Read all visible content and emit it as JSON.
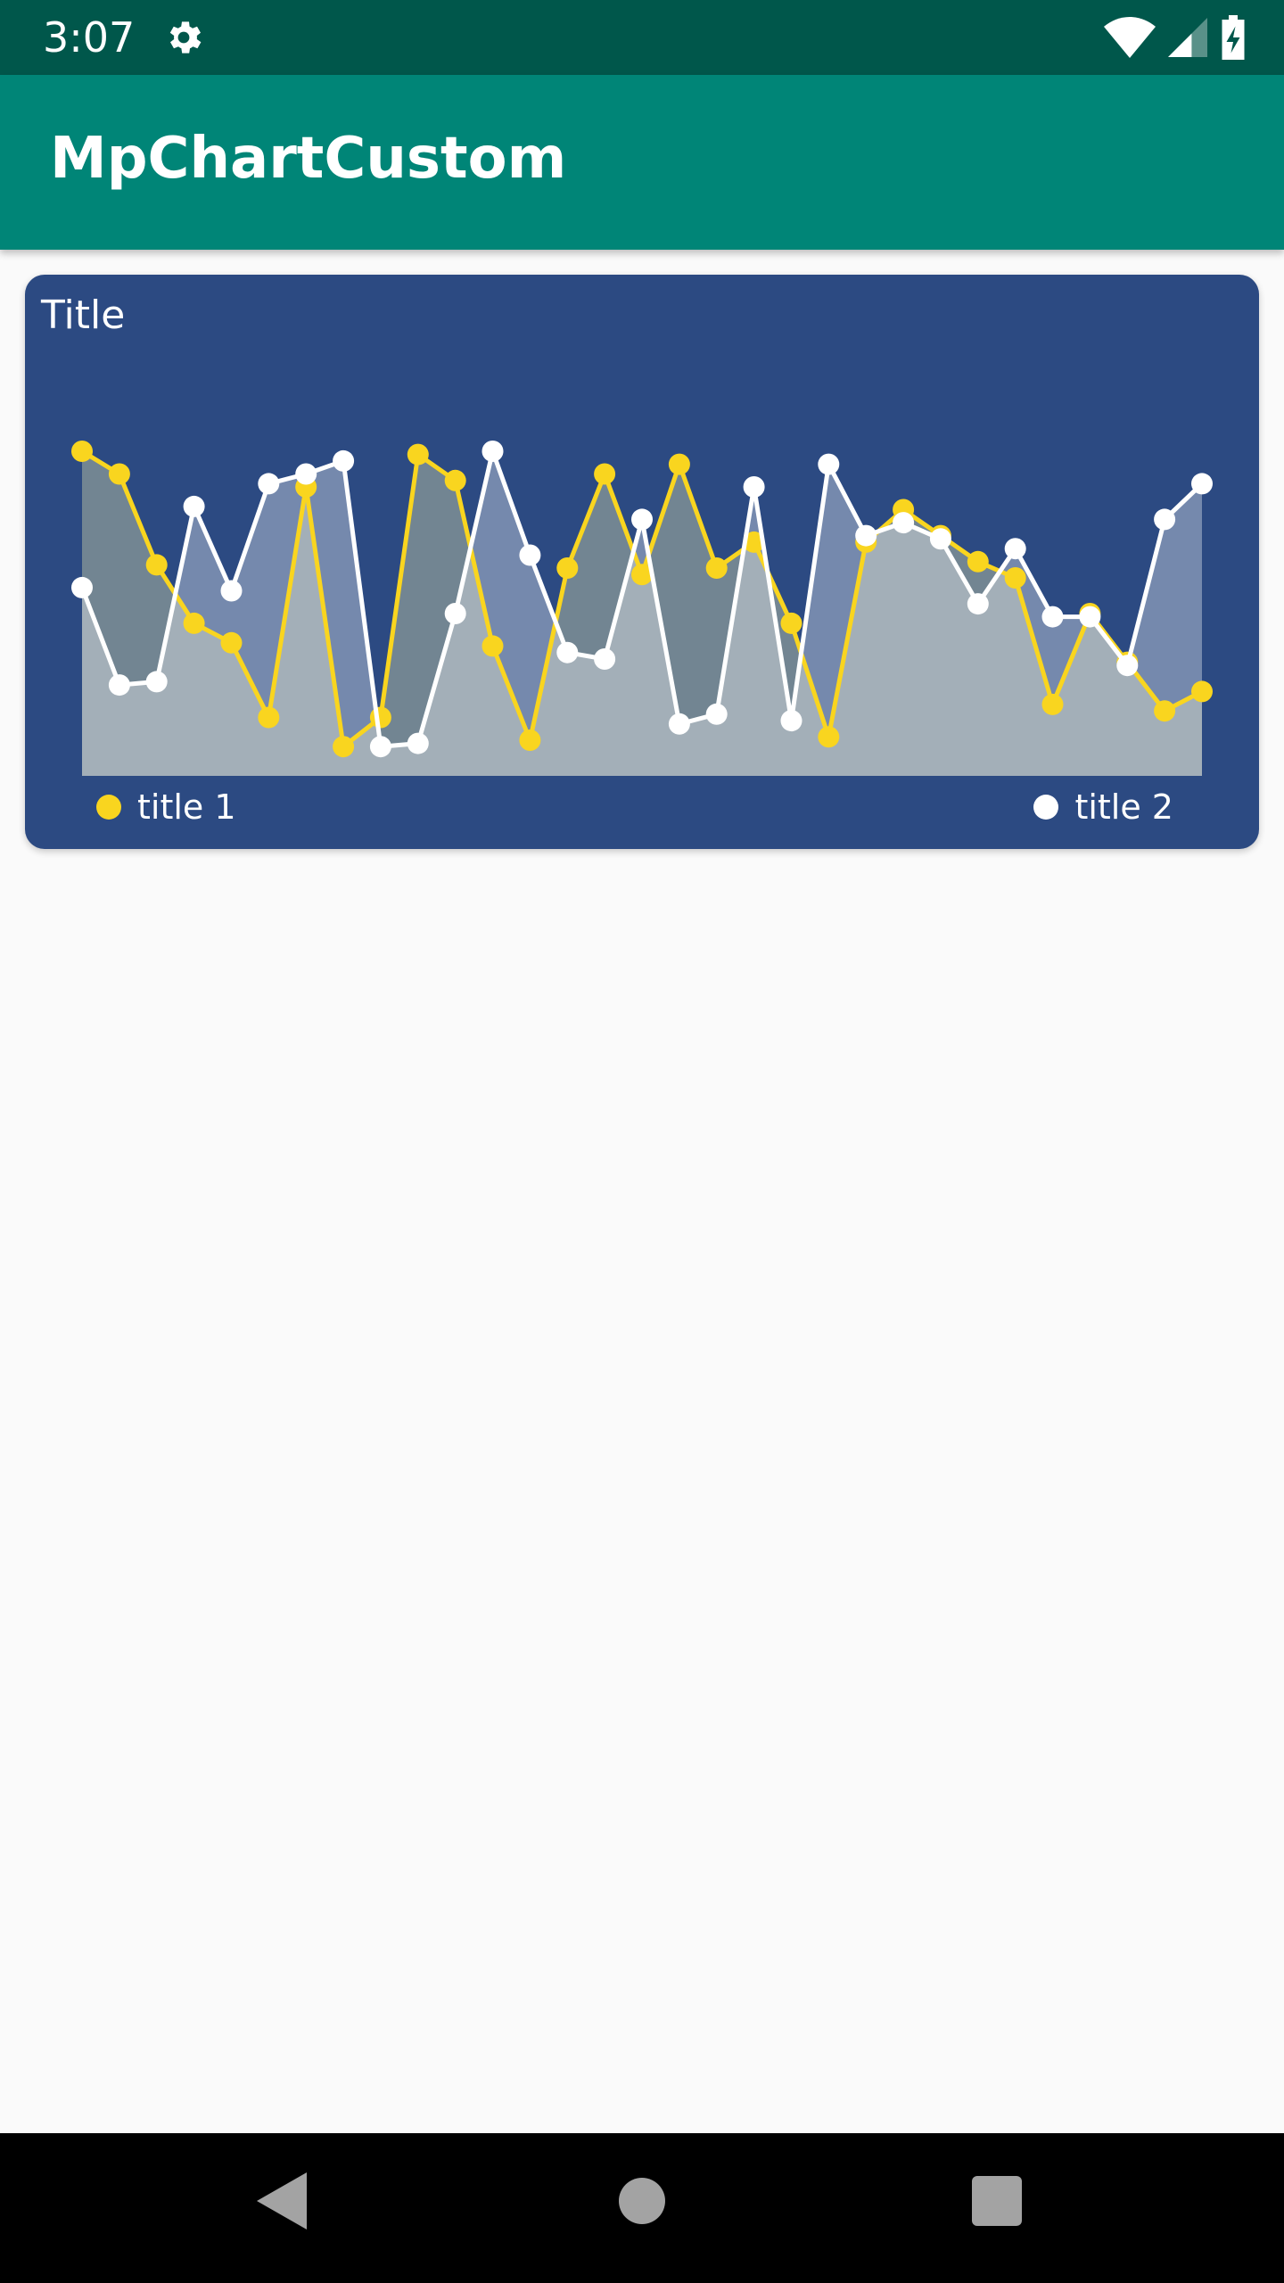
{
  "status_bar": {
    "time": "3:07",
    "icons": [
      "settings-gear-icon",
      "wifi-icon",
      "cellular-signal-icon",
      "battery-charging-icon"
    ]
  },
  "app_bar": {
    "title": "MpChartCustom"
  },
  "chart_card": {
    "background": "#2c4a82",
    "title": "Title",
    "legend": [
      {
        "label": "title 1",
        "color": "#f9d51f"
      },
      {
        "label": "title 2",
        "color": "#ffffff"
      }
    ]
  },
  "chart_data": {
    "type": "line",
    "title": "Title",
    "xlabel": "",
    "ylabel": "",
    "x": [
      0,
      1,
      2,
      3,
      4,
      5,
      6,
      7,
      8,
      9,
      10,
      11,
      12,
      13,
      14,
      15,
      16,
      17,
      18,
      19,
      20,
      21,
      22,
      23,
      24,
      25,
      26,
      27,
      28,
      29,
      30
    ],
    "ylim": [
      0,
      100
    ],
    "grid": false,
    "legend_position": "bottom",
    "series": [
      {
        "name": "title 1",
        "color": "#f9d51f",
        "fill": true,
        "values": [
          100,
          93,
          65,
          47,
          41,
          18,
          89,
          9,
          18,
          99,
          91,
          40,
          11,
          64,
          93,
          62,
          96,
          64,
          72,
          47,
          12,
          72,
          82,
          74,
          66,
          61,
          22,
          50,
          35,
          20,
          26
        ]
      },
      {
        "name": "title 2",
        "color": "#ffffff",
        "fill": true,
        "values": [
          58,
          28,
          29,
          83,
          57,
          90,
          93,
          97,
          9,
          10,
          50,
          100,
          68,
          38,
          36,
          79,
          16,
          19,
          89,
          17,
          96,
          74,
          78,
          73,
          53,
          70,
          49,
          49,
          34,
          79,
          90
        ]
      }
    ]
  },
  "nav_bar": {
    "buttons": [
      "back-icon",
      "home-icon",
      "recents-icon"
    ]
  }
}
